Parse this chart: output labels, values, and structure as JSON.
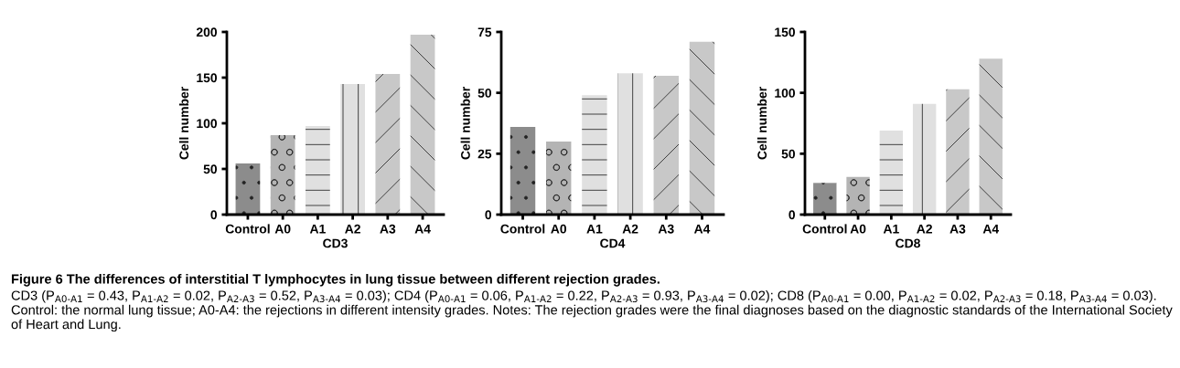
{
  "chart_data": [
    {
      "type": "bar",
      "xlabel": "CD3",
      "ylabel": "Cell number",
      "categories": [
        "Control",
        "A0",
        "A1",
        "A2",
        "A3",
        "A4"
      ],
      "values": [
        56,
        87,
        97,
        143,
        154,
        197
      ],
      "colors": [
        "#8c8c8c",
        "#b4b4b4",
        "#e0e0e0",
        "#e0e0e0",
        "#c8c8c8",
        "#c8c8c8"
      ],
      "ylim": [
        0,
        200
      ],
      "yticks": [
        0,
        50,
        100,
        150,
        200
      ],
      "grid": false,
      "legend": false,
      "annotations": [
        "Figure 6 The differences of interstitial T lymphocytes in lung tissue between different rejection grades.",
        "CD3 (P$_{A0-A1}$ = 0.43, P$_{A1-A2}$ = 0.02, P$_{A2-A3}$ = 0.52, P$_{A3-A4}$ = 0.03); CD4 (P$_{A0-A1}$ = 0.06, P$_{A1-A2}$ = 0.22, P$_{A2-A3}$ = 0.93, P$_{A3-A4}$ = 0.02); CD8 (P$_{A0-A1}$ = 0.00, P$_{A1-A2}$ = 0.02, P$_{A2-A3}$ = 0.18, P$_{A3-A4}$ = 0.03). Control: the normal lung tissue; A0-A4: the rejections in different intensity grades. Notes: The rejection grades were the final diagnoses based on the diagnostic standards of the International Society of Heart and Lung."
      ]
    },
    {
      "type": "bar",
      "xlabel": "CD4",
      "ylabel": "Cell number",
      "categories": [
        "Control",
        "A0",
        "A1",
        "A2",
        "A3",
        "A4"
      ],
      "values": [
        36,
        30,
        49,
        58,
        57,
        71
      ],
      "colors": [
        "#8c8c8c",
        "#b4b4b4",
        "#e0e0e0",
        "#e0e0e0",
        "#c8c8c8",
        "#c8c8c8"
      ],
      "ylim": [
        0,
        75
      ],
      "yticks": [
        0,
        25,
        50,
        75
      ],
      "grid": false,
      "legend": false
    },
    {
      "type": "bar",
      "xlabel": "CD8",
      "ylabel": "Cell number",
      "categories": [
        "Control",
        "A0",
        "A1",
        "A2",
        "A3",
        "A4"
      ],
      "values": [
        26,
        31,
        69,
        91,
        103,
        128
      ],
      "colors": [
        "#8c8c8c",
        "#b4b4b4",
        "#e0e0e0",
        "#e0e0e0",
        "#c8c8c8",
        "#c8c8c8"
      ],
      "ylim": [
        0,
        150
      ],
      "yticks": [
        0,
        50,
        100,
        150
      ],
      "grid": false,
      "legend": false
    }
  ]
}
